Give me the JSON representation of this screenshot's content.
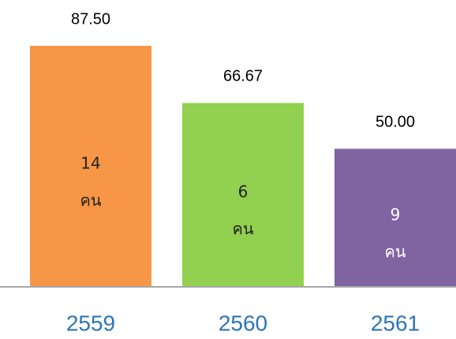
{
  "chart_data": {
    "type": "bar",
    "categories": [
      "2559",
      "2560",
      "2561"
    ],
    "values": [
      87.5,
      66.67,
      50
    ],
    "value_labels": [
      "87.50",
      "66.67",
      "50.00"
    ],
    "colors": [
      "#f79646",
      "#92d050",
      "#8064a2"
    ],
    "counts": [
      14,
      6,
      9
    ],
    "count_unit": "คน",
    "count_label_colors": [
      "#222222",
      "#222222",
      "#ffffff"
    ]
  }
}
